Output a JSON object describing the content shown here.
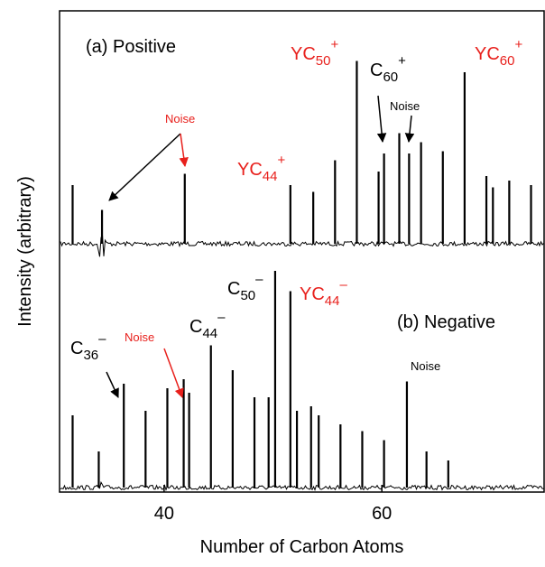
{
  "chart_data": [
    {
      "type": "stem",
      "color": "#000000",
      "ylabel": "Intensity (arbitrary)",
      "xlim": [
        30.4,
        74.9
      ],
      "ylim": [
        -30,
        100
      ],
      "x": [
        31.6,
        34.3,
        41.9,
        51.6,
        53.7,
        55.7,
        57.7,
        59.7,
        60.2,
        61.6,
        62.5,
        63.6,
        65.6,
        67.6,
        69.6,
        70.2,
        71.7,
        73.7
      ],
      "values": [
        26,
        15,
        31,
        26,
        23,
        37,
        81,
        32,
        40,
        49,
        40,
        45,
        41,
        76,
        30,
        25,
        28,
        26
      ],
      "annotations": [
        {
          "text": "(a) Positive",
          "color": "#000000"
        },
        {
          "text": "Noise",
          "color": "#e8201c"
        },
        {
          "text": "YC",
          "sub": "44",
          "sup": "+",
          "color": "#e8201c"
        },
        {
          "text": "YC",
          "sub": "50",
          "sup": "+",
          "color": "#e8201c"
        },
        {
          "text": "C",
          "sub": "60",
          "sup": "+",
          "color": "#000000"
        },
        {
          "text": "Noise",
          "color": "#000000"
        },
        {
          "text": "YC",
          "sub": "60",
          "sup": "+",
          "color": "#e8201c"
        }
      ]
    },
    {
      "type": "stem",
      "color": "#000000",
      "xlabel": "Number of Carbon Atoms",
      "xlim": [
        30.4,
        74.9
      ],
      "ylim": [
        0,
        100
      ],
      "xticks": [
        40,
        60
      ],
      "x": [
        31.6,
        34.0,
        36.3,
        38.3,
        40.3,
        41.8,
        42.3,
        44.3,
        46.3,
        48.3,
        49.6,
        50.2,
        51.6,
        52.2,
        53.5,
        54.2,
        56.2,
        58.2,
        60.2,
        62.3,
        64.1,
        66.1
      ],
      "values": [
        32,
        16,
        46,
        34,
        44,
        48,
        42,
        63,
        52,
        40,
        40,
        96,
        87,
        34,
        36,
        32,
        28,
        25,
        21,
        47,
        16,
        12
      ],
      "annotations": [
        {
          "text": "(b) Negative",
          "color": "#000000"
        },
        {
          "text": "C",
          "sub": "36",
          "sup": "–",
          "color": "#000000"
        },
        {
          "text": "Noise",
          "color": "#e8201c"
        },
        {
          "text": "C",
          "sub": "44",
          "sup": "–",
          "color": "#000000"
        },
        {
          "text": "C",
          "sub": "50",
          "sup": "–",
          "color": "#000000"
        },
        {
          "text": "YC",
          "sub": "44",
          "sup": "–",
          "color": "#e8201c"
        },
        {
          "text": "Noise",
          "color": "#000000"
        }
      ]
    }
  ]
}
